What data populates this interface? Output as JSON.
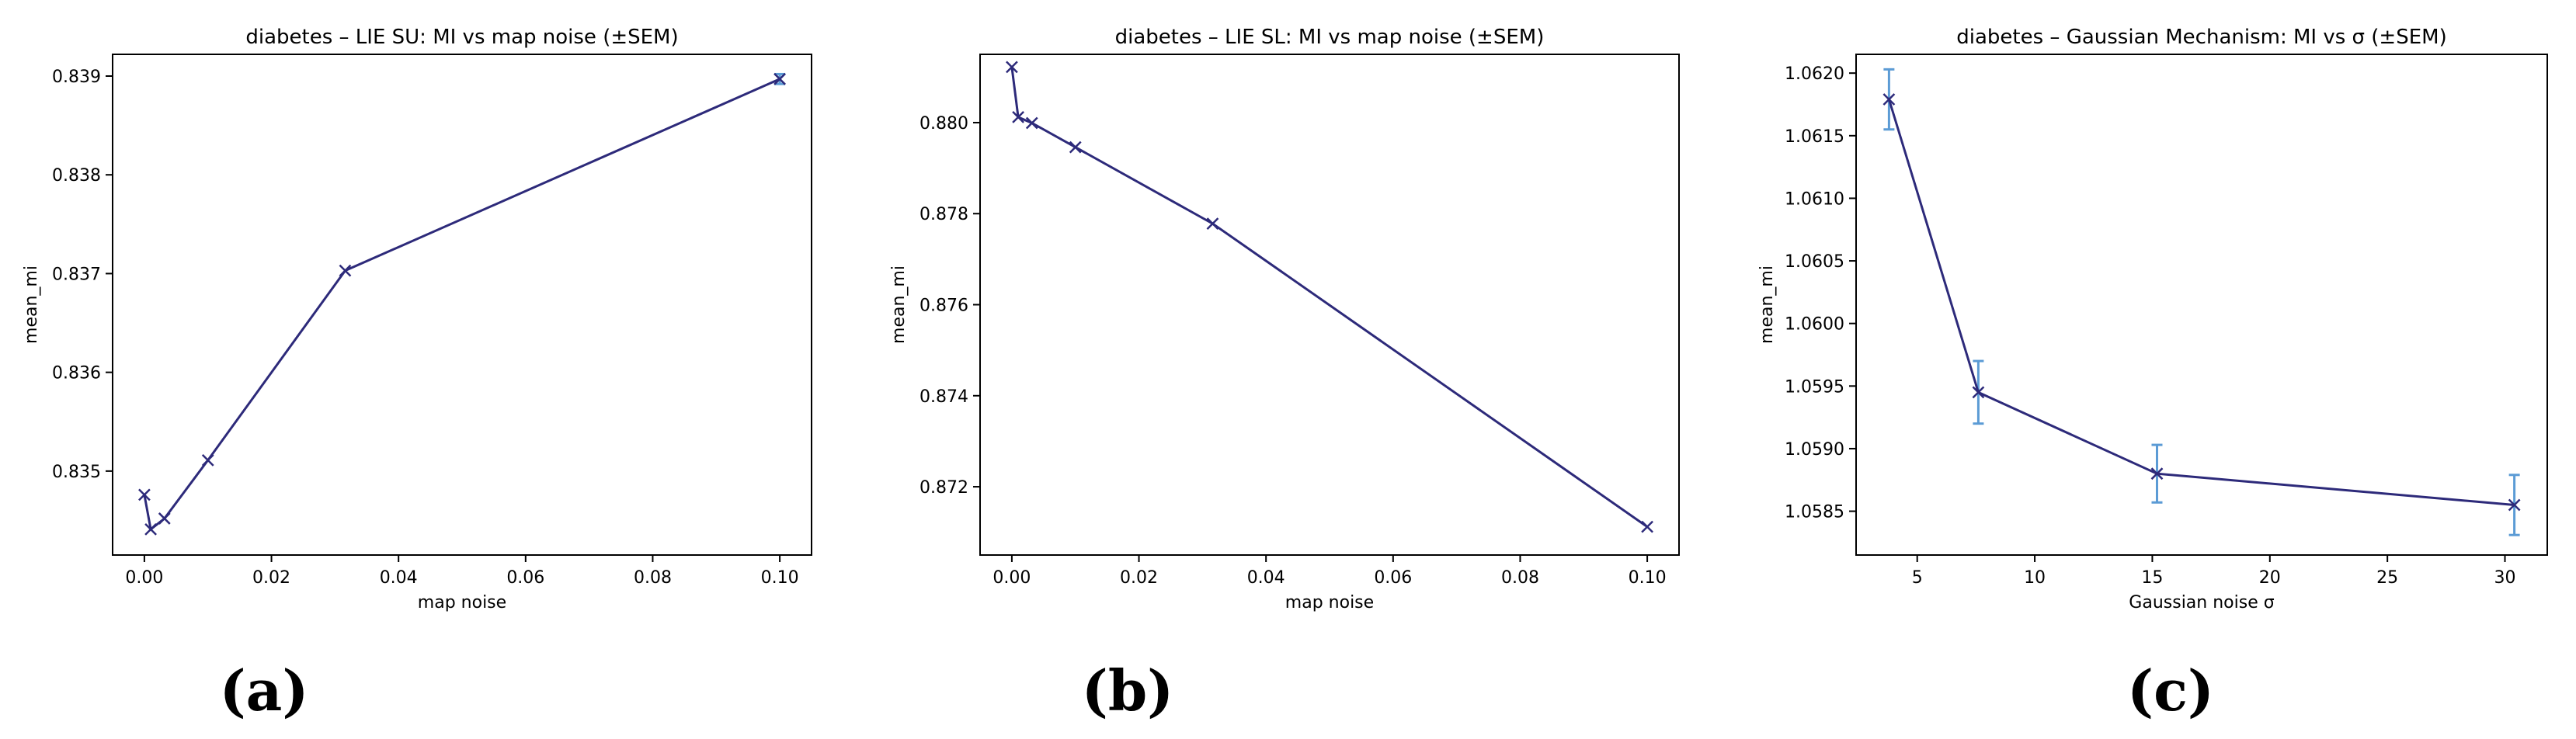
{
  "chart_data": [
    {
      "type": "line",
      "panel_label": "(a)",
      "title": "diabetes – LIE SU: MI vs map noise (±SEM)",
      "xlabel": "map noise",
      "ylabel": "mean_mi",
      "xlim": [
        -0.005,
        0.105
      ],
      "ylim": [
        0.83415,
        0.83922
      ],
      "xticks": [
        0.0,
        0.02,
        0.04,
        0.06,
        0.08,
        0.1
      ],
      "xtick_labels": [
        "0.00",
        "0.02",
        "0.04",
        "0.06",
        "0.08",
        "0.10"
      ],
      "yticks": [
        0.835,
        0.836,
        0.837,
        0.838,
        0.839
      ],
      "ytick_labels": [
        "0.835",
        "0.836",
        "0.837",
        "0.838",
        "0.839"
      ],
      "grid": false,
      "series": [
        {
          "x": [
            0.0,
            0.001,
            0.00316,
            0.01,
            0.0316,
            0.1
          ],
          "y": [
            0.83476,
            0.83441,
            0.83452,
            0.83511,
            0.83703,
            0.83897
          ],
          "sem": [
            0.0,
            0.0,
            0.0,
            0.0,
            0.0,
            5e-05
          ],
          "line_color": "#2d2a7a",
          "errorbar_color": "#5b9bd5",
          "marker": "x"
        }
      ]
    },
    {
      "type": "line",
      "panel_label": "(b)",
      "title": "diabetes – LIE SL: MI vs map noise (±SEM)",
      "xlabel": "map noise",
      "ylabel": "mean_mi",
      "xlim": [
        -0.005,
        0.105
      ],
      "ylim": [
        0.8705,
        0.8815
      ],
      "xticks": [
        0.0,
        0.02,
        0.04,
        0.06,
        0.08,
        0.1
      ],
      "xtick_labels": [
        "0.00",
        "0.02",
        "0.04",
        "0.06",
        "0.08",
        "0.10"
      ],
      "yticks": [
        0.872,
        0.874,
        0.876,
        0.878,
        0.88
      ],
      "ytick_labels": [
        "0.872",
        "0.874",
        "0.876",
        "0.878",
        "0.880"
      ],
      "grid": false,
      "series": [
        {
          "x": [
            0.0,
            0.001,
            0.00316,
            0.01,
            0.0316,
            0.1
          ],
          "y": [
            0.88122,
            0.88012,
            0.87999,
            0.87946,
            0.87778,
            0.87112
          ],
          "sem": [
            0.0,
            0.0,
            0.0,
            0.0,
            0.0,
            0.0
          ],
          "line_color": "#2d2a7a",
          "errorbar_color": "#5b9bd5",
          "marker": "x"
        }
      ]
    },
    {
      "type": "line",
      "panel_label": "(c)",
      "title": "diabetes – Gaussian Mechanism: MI vs σ (±SEM)",
      "xlabel": "Gaussian noise σ",
      "ylabel": "mean_mi",
      "xlim": [
        2.4,
        31.8
      ],
      "ylim": [
        1.05815,
        1.06215
      ],
      "xticks": [
        5,
        10,
        15,
        20,
        25,
        30
      ],
      "xtick_labels": [
        "5",
        "10",
        "15",
        "20",
        "25",
        "30"
      ],
      "yticks": [
        1.0585,
        1.059,
        1.0595,
        1.06,
        1.0605,
        1.061,
        1.0615,
        1.062
      ],
      "ytick_labels": [
        "1.0585",
        "1.0590",
        "1.0595",
        "1.0600",
        "1.0605",
        "1.0610",
        "1.0615",
        "1.0620"
      ],
      "grid": false,
      "series": [
        {
          "x": [
            3.8,
            7.6,
            15.2,
            30.4
          ],
          "y": [
            1.06179,
            1.05945,
            1.0588,
            1.05855
          ],
          "sem": [
            0.00024,
            0.00025,
            0.00023,
            0.00024
          ],
          "line_color": "#2d2a7a",
          "errorbar_color": "#5b9bd5",
          "marker": "x"
        }
      ]
    }
  ]
}
